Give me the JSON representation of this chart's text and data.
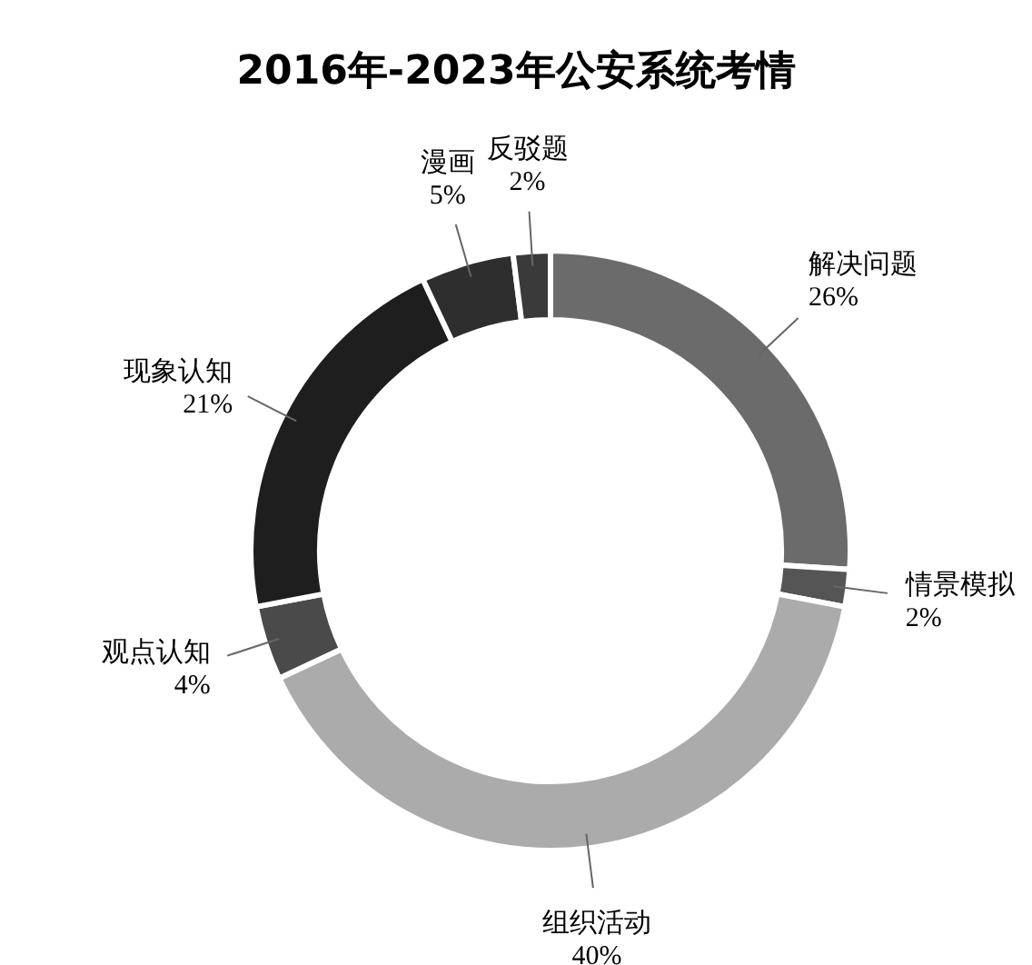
{
  "chart_data": {
    "type": "donut",
    "title": "2016年-2023年公安系统考情",
    "categories": [
      "解决问题",
      "情景模拟",
      "组织活动",
      "观点认知",
      "现象认知",
      "漫画",
      "反驳题"
    ],
    "values": [
      26,
      2,
      40,
      4,
      21,
      5,
      2
    ],
    "value_labels": [
      "26%",
      "2%",
      "40%",
      "4%",
      "21%",
      "5%",
      "2%"
    ],
    "colors": [
      "#6b6b6b",
      "#555555",
      "#ababab",
      "#4a4a4a",
      "#1e1e1e",
      "#2e2e2e",
      "#3a3a3a"
    ]
  }
}
